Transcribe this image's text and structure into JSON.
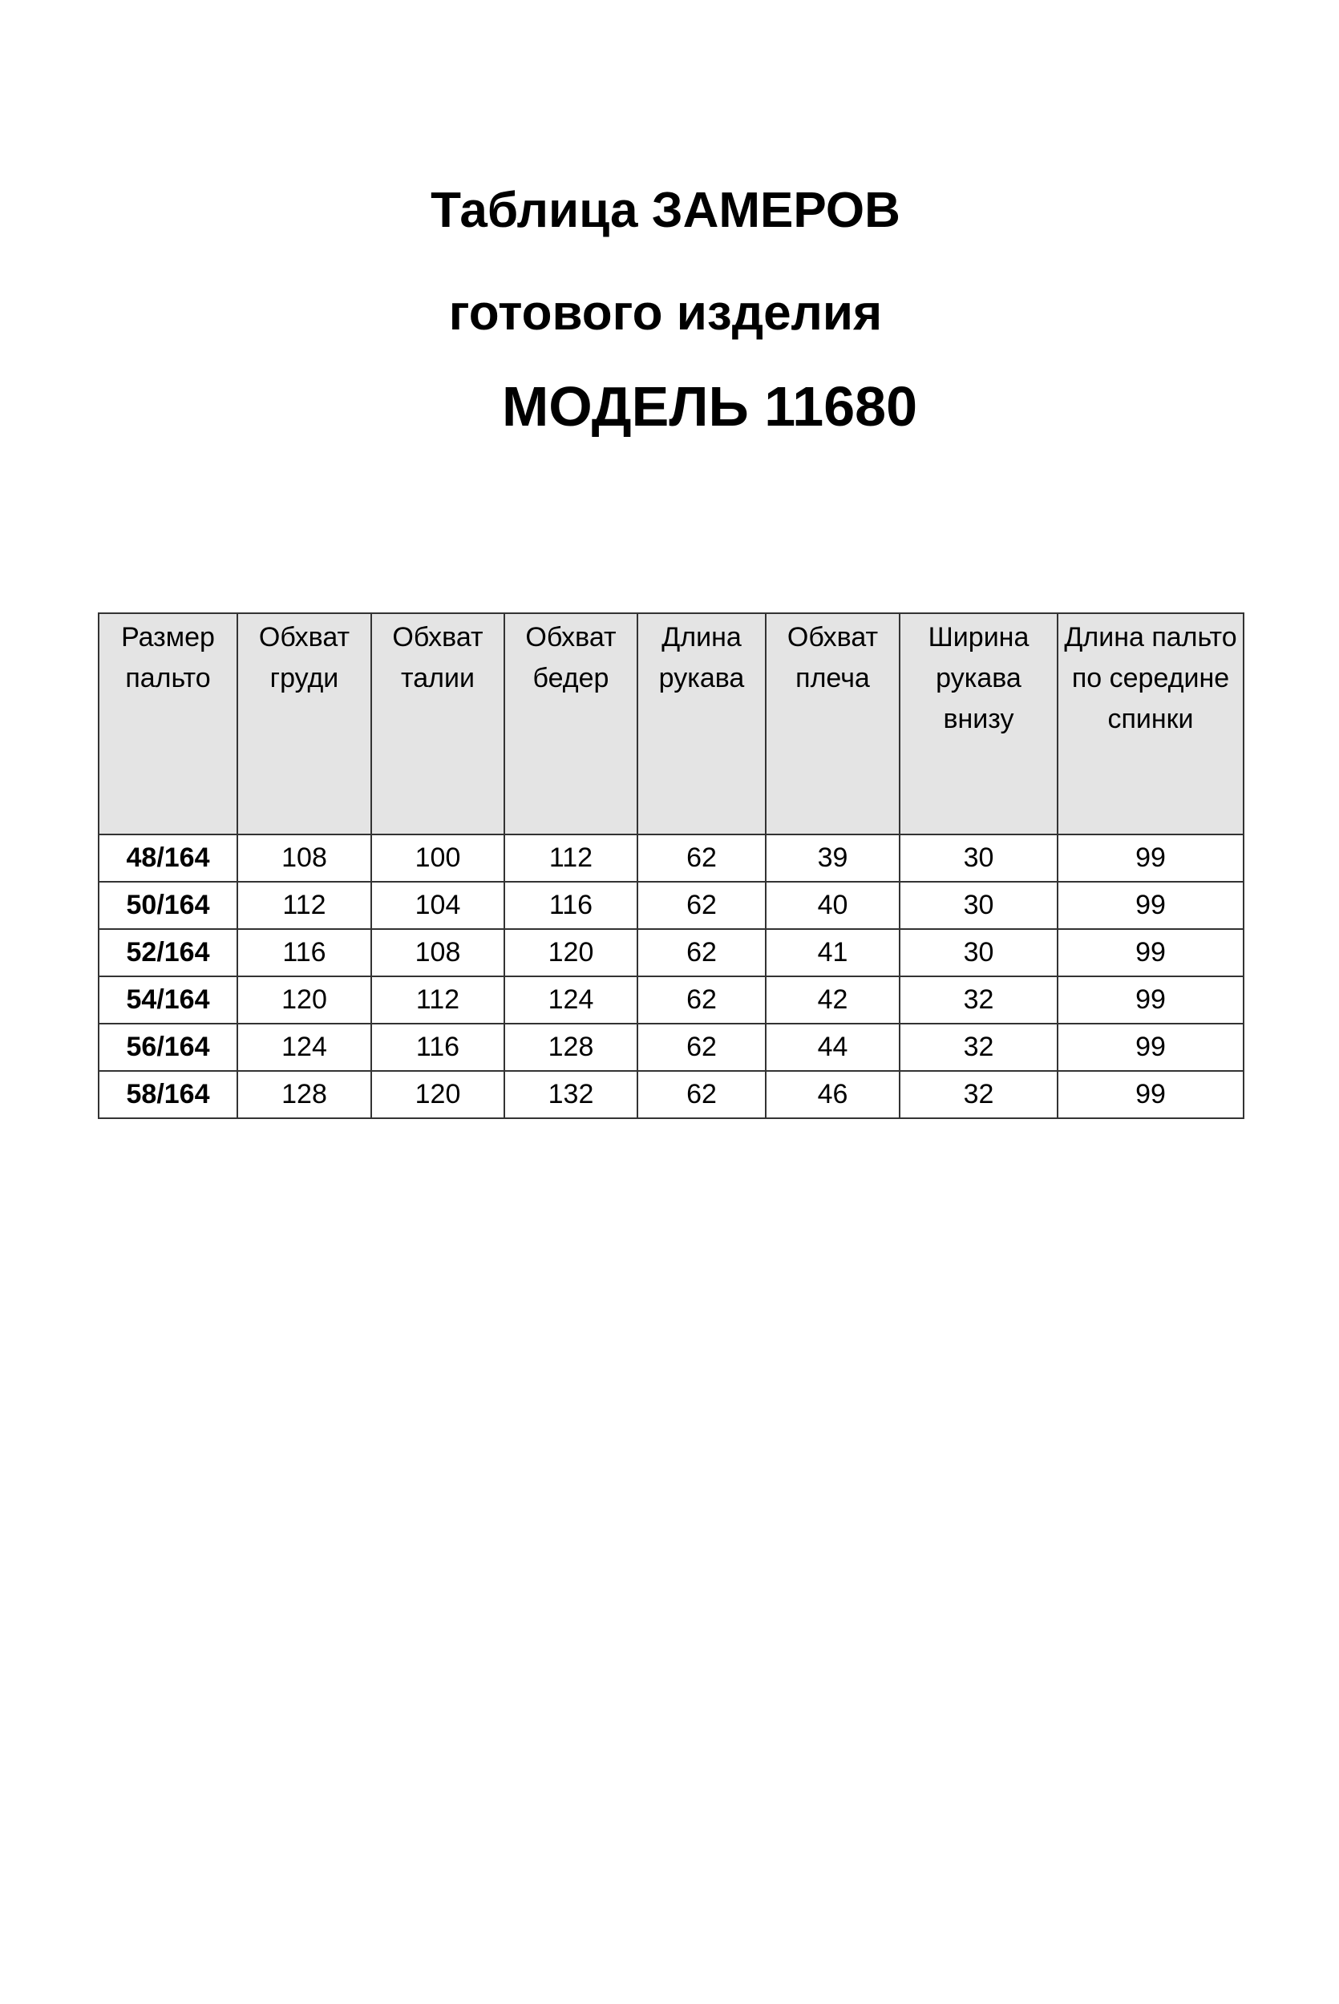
{
  "title": {
    "line1": "Таблица ЗАМЕРОВ",
    "line2": "готового изделия",
    "line3": "МОДЕЛЬ 11680"
  },
  "table": {
    "headers": [
      "Размер пальто",
      "Обхват груди",
      "Обхват талии",
      "Обхват бедер",
      "Длина рукава",
      "Обхват плеча",
      "Ширина рукава внизу",
      "Длина пальто по середине спинки"
    ],
    "rows": [
      [
        "48/164",
        "108",
        "100",
        "112",
        "62",
        "39",
        "30",
        "99"
      ],
      [
        "50/164",
        "112",
        "104",
        "116",
        "62",
        "40",
        "30",
        "99"
      ],
      [
        "52/164",
        "116",
        "108",
        "120",
        "62",
        "41",
        "30",
        "99"
      ],
      [
        "54/164",
        "120",
        "112",
        "124",
        "62",
        "42",
        "32",
        "99"
      ],
      [
        "56/164",
        "124",
        "116",
        "128",
        "62",
        "44",
        "32",
        "99"
      ],
      [
        "58/164",
        "128",
        "120",
        "132",
        "62",
        "46",
        "32",
        "99"
      ]
    ],
    "header_bg": "#e4e4e4"
  }
}
